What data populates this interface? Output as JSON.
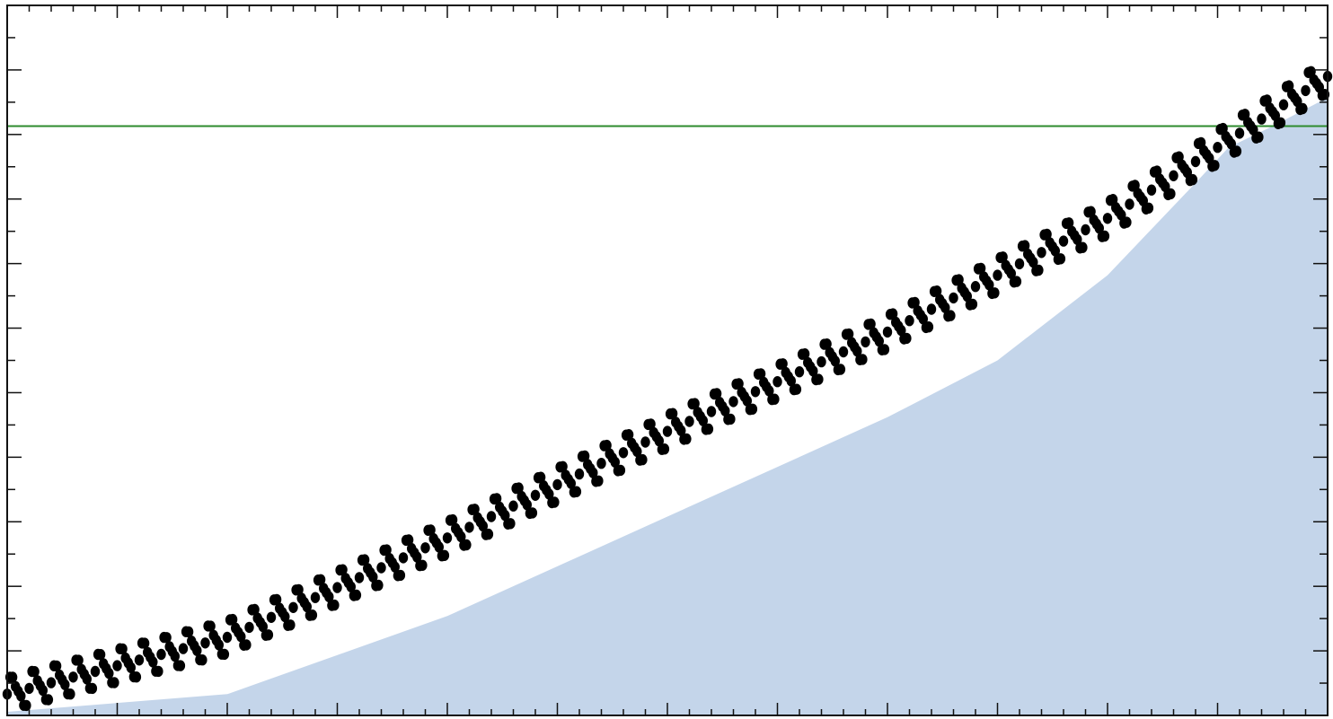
{
  "chart_data": {
    "type": "scatter",
    "title": "",
    "xlabel": "",
    "ylabel": "",
    "grid": false,
    "legend": "none",
    "xlim": [
      0,
      60
    ],
    "ylim": [
      0,
      100
    ],
    "reference_line": {
      "y": 83,
      "color": "#2e8b2e"
    },
    "fill_color": "#c4d5ea",
    "point_color": "#000000",
    "seasonal_amplitude": 2.6,
    "points_per_cycle": 8,
    "trend": [
      {
        "x": 0,
        "y": 3
      },
      {
        "x": 10,
        "y": 11
      },
      {
        "x": 20,
        "y": 25
      },
      {
        "x": 30,
        "y": 40
      },
      {
        "x": 40,
        "y": 54
      },
      {
        "x": 50,
        "y": 70
      },
      {
        "x": 55,
        "y": 80
      },
      {
        "x": 60,
        "y": 90
      }
    ],
    "fill_boundary": [
      {
        "x": 0,
        "y": 0.5
      },
      {
        "x": 10,
        "y": 3
      },
      {
        "x": 20,
        "y": 14
      },
      {
        "x": 30,
        "y": 28
      },
      {
        "x": 40,
        "y": 42
      },
      {
        "x": 45,
        "y": 50
      },
      {
        "x": 50,
        "y": 62
      },
      {
        "x": 54,
        "y": 75
      },
      {
        "x": 55.5,
        "y": 80
      },
      {
        "x": 57.5,
        "y": 83
      },
      {
        "x": 60,
        "y": 87
      }
    ]
  }
}
